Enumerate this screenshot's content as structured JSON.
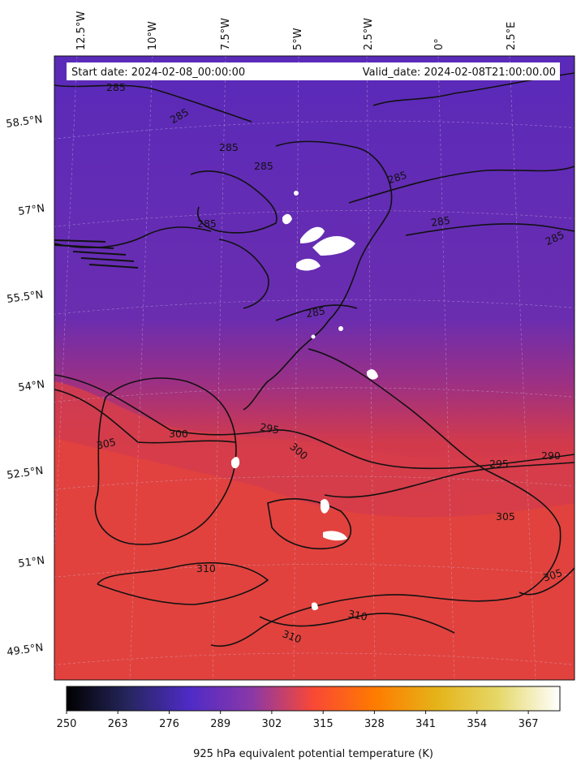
{
  "header": {
    "start_date": "Start date: 2024-02-08_00:00:00",
    "valid_date": "Valid_date: 2024-02-08T21:00:00.00"
  },
  "longitude_labels": [
    "12.5°W",
    "10°W",
    "7.5°W",
    "5°W",
    "2.5°W",
    "0°",
    "2.5°E"
  ],
  "latitude_labels": [
    "58.5°N",
    "57°N",
    "55.5°N",
    "54°N",
    "52.5°N",
    "51°N",
    "49.5°N"
  ],
  "contour_labels": {
    "c285": "285",
    "c290": "290",
    "c295": "295",
    "c300": "300",
    "c305": "305",
    "c310": "310"
  },
  "colorbar": {
    "title": "925 hPa equivalent potential temperature (K)",
    "colormap": "CMRmap",
    "range": [
      250,
      375
    ],
    "ticks": [
      "250",
      "263",
      "276",
      "289",
      "302",
      "315",
      "328",
      "341",
      "354",
      "367"
    ]
  },
  "colors": {
    "north_field": "#5a2ab8",
    "south_field": "#e8403a",
    "contour": "#111111",
    "grid": "#cfc6e8"
  }
}
